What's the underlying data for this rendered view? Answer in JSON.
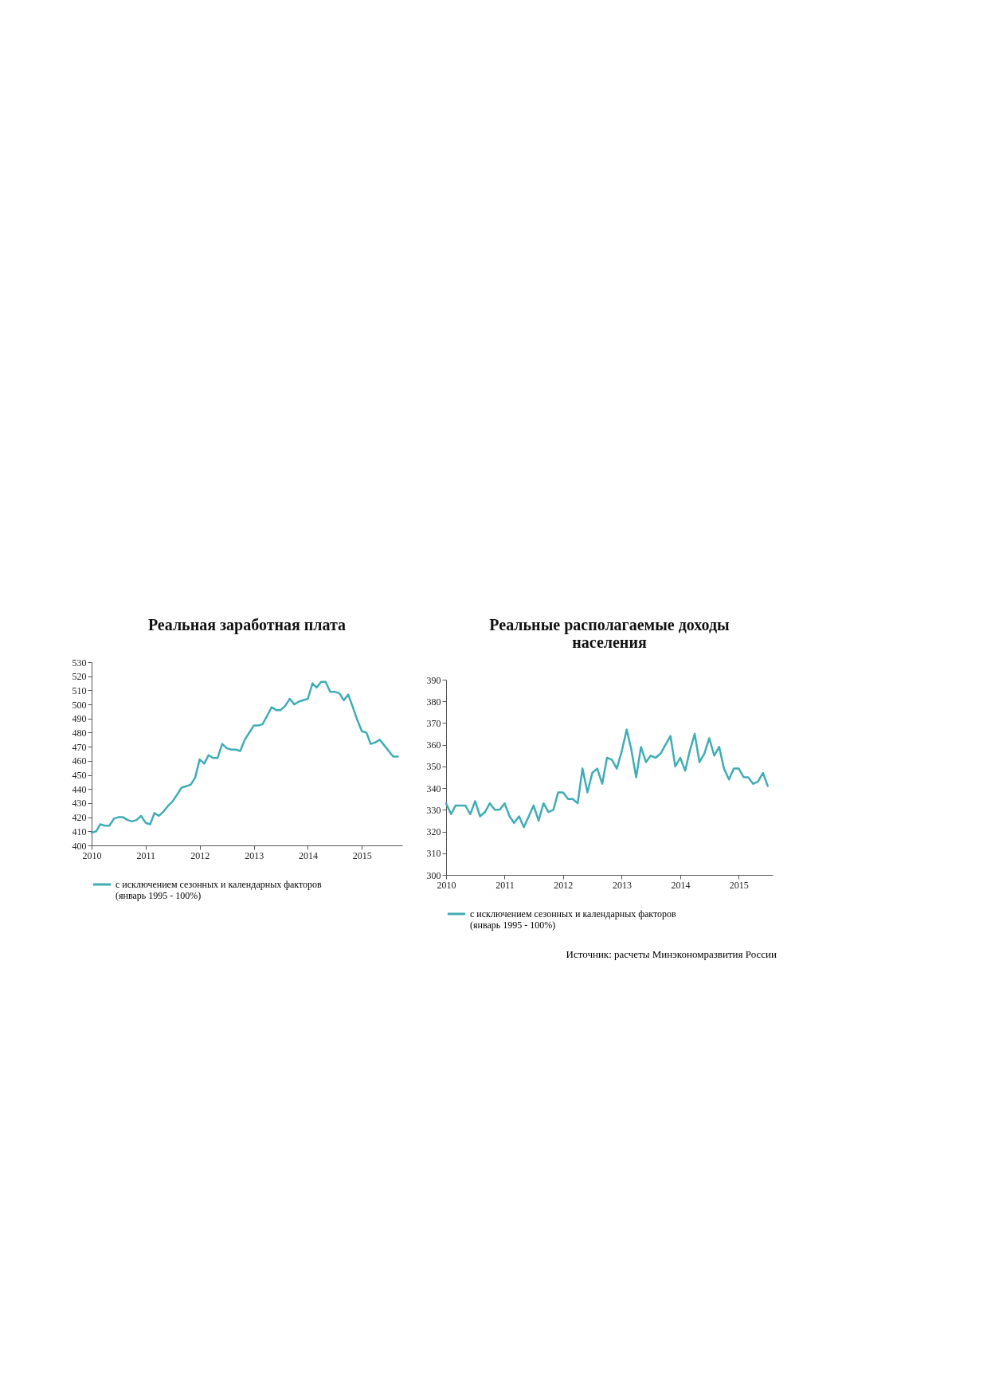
{
  "chart_data": [
    {
      "type": "line",
      "title": "Реальная заработная плата",
      "x": [
        "2010-01",
        "2010-02",
        "2010-03",
        "2010-04",
        "2010-05",
        "2010-06",
        "2010-07",
        "2010-08",
        "2010-09",
        "2010-10",
        "2010-11",
        "2010-12",
        "2011-01",
        "2011-02",
        "2011-03",
        "2011-04",
        "2011-05",
        "2011-06",
        "2011-07",
        "2011-08",
        "2011-09",
        "2011-10",
        "2011-11",
        "2011-12",
        "2012-01",
        "2012-02",
        "2012-03",
        "2012-04",
        "2012-05",
        "2012-06",
        "2012-07",
        "2012-08",
        "2012-09",
        "2012-10",
        "2012-11",
        "2012-12",
        "2013-01",
        "2013-02",
        "2013-03",
        "2013-04",
        "2013-05",
        "2013-06",
        "2013-07",
        "2013-08",
        "2013-09",
        "2013-10",
        "2013-11",
        "2013-12",
        "2014-01",
        "2014-02",
        "2014-03",
        "2014-04",
        "2014-05",
        "2014-06",
        "2014-07",
        "2014-08",
        "2014-09",
        "2014-10",
        "2014-11",
        "2014-12",
        "2015-01",
        "2015-02",
        "2015-03",
        "2015-04",
        "2015-05",
        "2015-06",
        "2015-07",
        "2015-08",
        "2015-09"
      ],
      "series": [
        {
          "name": "с исключением сезонных и календарных факторов\n(январь 1995 - 100%)",
          "color": "#3fadb5",
          "values": [
            409,
            410,
            415,
            414,
            414,
            419,
            420,
            420,
            418,
            417,
            418,
            421,
            416,
            415,
            423,
            421,
            424,
            428,
            431,
            436,
            441,
            442,
            443,
            448,
            461,
            458,
            464,
            462,
            462,
            472,
            469,
            468,
            468,
            467,
            475,
            480,
            485,
            485,
            486,
            492,
            498,
            496,
            496,
            499,
            504,
            500,
            502,
            503,
            504,
            515,
            512,
            516,
            516,
            509,
            509,
            508,
            503,
            507,
            498,
            489,
            481,
            480,
            472,
            473,
            475,
            471,
            467,
            463,
            463
          ]
        }
      ],
      "xlim": [
        "2010-01",
        "2015-10"
      ],
      "xticks": [
        {
          "value": "2010-01",
          "label": "2010"
        },
        {
          "value": "2011-01",
          "label": "2011"
        },
        {
          "value": "2012-01",
          "label": "2012"
        },
        {
          "value": "2013-01",
          "label": "2013"
        },
        {
          "value": "2014-01",
          "label": "2014"
        },
        {
          "value": "2015-01",
          "label": "2015"
        }
      ],
      "ylim": [
        400,
        530
      ],
      "yticks": [
        400,
        410,
        420,
        430,
        440,
        450,
        460,
        470,
        480,
        490,
        500,
        510,
        520,
        530
      ],
      "grid": false,
      "legend": "bottom"
    },
    {
      "type": "line",
      "title": "Реальные располагаемые доходы\nнаселения",
      "x": [
        "2010-01",
        "2010-02",
        "2010-03",
        "2010-04",
        "2010-05",
        "2010-06",
        "2010-07",
        "2010-08",
        "2010-09",
        "2010-10",
        "2010-11",
        "2010-12",
        "2011-01",
        "2011-02",
        "2011-03",
        "2011-04",
        "2011-05",
        "2011-06",
        "2011-07",
        "2011-08",
        "2011-09",
        "2011-10",
        "2011-11",
        "2011-12",
        "2012-01",
        "2012-02",
        "2012-03",
        "2012-04",
        "2012-05",
        "2012-06",
        "2012-07",
        "2012-08",
        "2012-09",
        "2012-10",
        "2012-11",
        "2012-12",
        "2013-01",
        "2013-02",
        "2013-03",
        "2013-04",
        "2013-05",
        "2013-06",
        "2013-07",
        "2013-08",
        "2013-09",
        "2013-10",
        "2013-11",
        "2013-12",
        "2014-01",
        "2014-02",
        "2014-03",
        "2014-04",
        "2014-05",
        "2014-06",
        "2014-07",
        "2014-08",
        "2014-09",
        "2014-10",
        "2014-11",
        "2014-12",
        "2015-01",
        "2015-02",
        "2015-03",
        "2015-04",
        "2015-05",
        "2015-06",
        "2015-07"
      ],
      "series": [
        {
          "name": "с исключением сезонных и календарных факторов\n(январь 1995 - 100%)",
          "color": "#3fadb5",
          "values": [
            333,
            328,
            332,
            332,
            332,
            328,
            334,
            327,
            329,
            333,
            330,
            330,
            333,
            327,
            324,
            327,
            322,
            327,
            332,
            325,
            333,
            329,
            330,
            338,
            338,
            335,
            335,
            333,
            349,
            338,
            347,
            349,
            342,
            354,
            353,
            349,
            357,
            367,
            358,
            345,
            359,
            352,
            355,
            354,
            356,
            360,
            364,
            350,
            354,
            348,
            357,
            365,
            352,
            356,
            363,
            355,
            359,
            349,
            344,
            349,
            349,
            345,
            345,
            342,
            343,
            347,
            341
          ]
        }
      ],
      "xlim": [
        "2010-01",
        "2015-08"
      ],
      "xticks": [
        {
          "value": "2010-01",
          "label": "2010"
        },
        {
          "value": "2011-01",
          "label": "2011"
        },
        {
          "value": "2012-01",
          "label": "2012"
        },
        {
          "value": "2013-01",
          "label": "2013"
        },
        {
          "value": "2014-01",
          "label": "2014"
        },
        {
          "value": "2015-01",
          "label": "2015"
        }
      ],
      "ylim": [
        300,
        390
      ],
      "yticks": [
        300,
        310,
        320,
        330,
        340,
        350,
        360,
        370,
        380,
        390
      ],
      "grid": false,
      "legend": "bottom",
      "annotations": [
        "Источник: расчеты Минэкономразвития России"
      ]
    }
  ]
}
